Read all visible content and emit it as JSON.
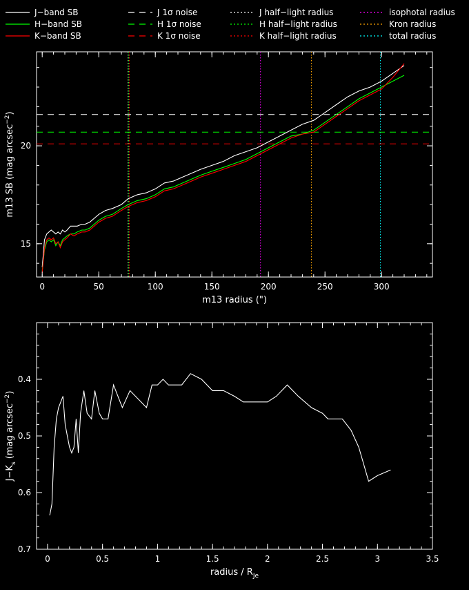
{
  "legend": {
    "items": [
      {
        "label": "J−band SB",
        "color": "#ffffff",
        "style": "solid"
      },
      {
        "label": "H−band SB",
        "color": "#00ff00",
        "style": "solid"
      },
      {
        "label": "K−band SB",
        "color": "#ff0000",
        "style": "solid"
      },
      {
        "label": "J 1σ noise",
        "color": "#ffffff",
        "style": "dashed"
      },
      {
        "label": "H 1σ noise",
        "color": "#00ff00",
        "style": "dashed"
      },
      {
        "label": "K 1σ noise",
        "color": "#ff0000",
        "style": "dashed"
      },
      {
        "label": "J half−light radius",
        "color": "#ffffff",
        "style": "dotted"
      },
      {
        "label": "H half−light radius",
        "color": "#00ff00",
        "style": "dotted"
      },
      {
        "label": "K half−light radius",
        "color": "#ff0000",
        "style": "dotted"
      },
      {
        "label": "isophotal radius",
        "color": "#ff00ff",
        "style": "dotted"
      },
      {
        "label": "Kron radius",
        "color": "#ffa500",
        "style": "dotted"
      },
      {
        "label": "total radius",
        "color": "#00ffff",
        "style": "dotted"
      }
    ]
  },
  "chart_data": [
    {
      "type": "line",
      "xlabel": "m13 radius (\")",
      "ylabel": "m13 SB (mag arcsec",
      "ylabel_sup": "−2",
      "ylabel_close": ")",
      "xlim": [
        -5,
        345
      ],
      "ylim": [
        24.8,
        13.3
      ],
      "x_ticks": [
        0,
        50,
        100,
        150,
        200,
        250,
        300
      ],
      "y_ticks": [
        15,
        20
      ],
      "series": [
        {
          "name": "J−band SB",
          "color": "#ffffff",
          "x": [
            0,
            2,
            4,
            6,
            8,
            10,
            12,
            14,
            16,
            18,
            20,
            22,
            25,
            28,
            31,
            35,
            38,
            42,
            46,
            50,
            56,
            62,
            70,
            76,
            84,
            92,
            100,
            108,
            116,
            124,
            132,
            140,
            150,
            160,
            170,
            180,
            190,
            200,
            210,
            220,
            230,
            240,
            250,
            260,
            270,
            280,
            290,
            300,
            310,
            320
          ],
          "y": [
            13.8,
            15.2,
            15.5,
            15.6,
            15.7,
            15.6,
            15.5,
            15.6,
            15.5,
            15.7,
            15.6,
            15.7,
            15.9,
            15.9,
            15.9,
            16.0,
            16.0,
            16.1,
            16.3,
            16.5,
            16.7,
            16.8,
            17.0,
            17.3,
            17.5,
            17.6,
            17.8,
            18.1,
            18.2,
            18.4,
            18.6,
            18.8,
            19.0,
            19.2,
            19.5,
            19.7,
            19.9,
            20.2,
            20.5,
            20.8,
            21.1,
            21.3,
            21.7,
            22.1,
            22.5,
            22.8,
            23.0,
            23.3,
            23.7,
            24.1
          ]
        },
        {
          "name": "H−band SB",
          "color": "#00ff00",
          "x": [
            0,
            2,
            4,
            6,
            8,
            10,
            12,
            14,
            16,
            18,
            20,
            22,
            25,
            28,
            31,
            35,
            38,
            42,
            46,
            50,
            56,
            62,
            70,
            76,
            84,
            92,
            100,
            108,
            116,
            124,
            132,
            140,
            150,
            160,
            170,
            180,
            190,
            200,
            210,
            220,
            230,
            240,
            250,
            260,
            270,
            280,
            290,
            300,
            310,
            320
          ],
          "y": [
            13.6,
            14.7,
            15.1,
            15.2,
            15.1,
            15.2,
            14.9,
            15.1,
            14.9,
            15.2,
            15.3,
            15.4,
            15.5,
            15.5,
            15.6,
            15.7,
            15.7,
            15.8,
            16.0,
            16.2,
            16.4,
            16.5,
            16.8,
            17.0,
            17.2,
            17.3,
            17.5,
            17.8,
            17.9,
            18.1,
            18.3,
            18.5,
            18.7,
            18.9,
            19.1,
            19.3,
            19.6,
            19.9,
            20.2,
            20.5,
            20.6,
            20.8,
            21.2,
            21.6,
            22.0,
            22.4,
            22.7,
            23.0,
            23.3,
            23.6
          ]
        },
        {
          "name": "K−band SB",
          "color": "#ff0000",
          "x": [
            0,
            2,
            4,
            6,
            8,
            10,
            12,
            14,
            16,
            18,
            20,
            22,
            25,
            28,
            31,
            35,
            38,
            42,
            46,
            50,
            56,
            62,
            70,
            76,
            84,
            92,
            100,
            108,
            116,
            124,
            132,
            140,
            150,
            160,
            170,
            180,
            190,
            200,
            210,
            220,
            230,
            240,
            250,
            260,
            270,
            280,
            290,
            300,
            310,
            320
          ],
          "y": [
            13.5,
            14.8,
            15.2,
            15.3,
            15.2,
            15.3,
            15.0,
            15.1,
            14.8,
            15.1,
            15.2,
            15.3,
            15.5,
            15.4,
            15.5,
            15.6,
            15.6,
            15.7,
            15.9,
            16.1,
            16.3,
            16.4,
            16.7,
            16.9,
            17.1,
            17.2,
            17.4,
            17.7,
            17.8,
            18.0,
            18.2,
            18.4,
            18.6,
            18.8,
            19.0,
            19.2,
            19.5,
            19.8,
            20.1,
            20.4,
            20.6,
            20.7,
            21.1,
            21.5,
            21.9,
            22.3,
            22.6,
            22.9,
            23.5,
            24.2
          ]
        }
      ],
      "hlines": [
        {
          "name": "J 1σ noise",
          "color": "#ffffff",
          "y": 21.6
        },
        {
          "name": "H 1σ noise",
          "color": "#00ff00",
          "y": 20.7
        },
        {
          "name": "K 1σ noise",
          "color": "#ff0000",
          "y": 20.1
        }
      ],
      "vlines": [
        {
          "name": "J half−light radius",
          "color": "#ffffff",
          "x": 76
        },
        {
          "name": "H half−light radius",
          "color": "#00ff00",
          "x": 76.5
        },
        {
          "name": "K half−light radius",
          "color": "#ff0000",
          "x": 77
        },
        {
          "name": "isophotal radius",
          "color": "#ff00ff",
          "x": 193
        },
        {
          "name": "Kron radius",
          "color": "#ffa500",
          "x": 238
        },
        {
          "name": "total radius",
          "color": "#00ffff",
          "x": 299
        }
      ]
    },
    {
      "type": "line",
      "xlabel": "radius / R",
      "xlabel_sub": "Je",
      "ylabel": "J−K",
      "ylabel_sub": "s",
      "ylabel_mid": " (mag arcsec",
      "ylabel_sup": "−2",
      "ylabel_close": ")",
      "xlim": [
        -0.1,
        3.5
      ],
      "ylim": [
        0.3,
        0.7
      ],
      "x_ticks": [
        0,
        0.5,
        1,
        1.5,
        2,
        2.5,
        3,
        3.5
      ],
      "x_tick_labels": [
        "0",
        "0.5",
        "1",
        "1.5",
        "2",
        "2.5",
        "3",
        "3.5"
      ],
      "y_ticks": [
        0.4,
        0.5,
        0.6,
        0.7
      ],
      "y_tick_labels": [
        "0.4",
        "0.5",
        "0.6",
        "0.7"
      ],
      "series": [
        {
          "name": "J−Ks",
          "color": "#ffffff",
          "x": [
            0.02,
            0.04,
            0.06,
            0.08,
            0.1,
            0.12,
            0.14,
            0.16,
            0.18,
            0.2,
            0.22,
            0.24,
            0.26,
            0.28,
            0.3,
            0.33,
            0.36,
            0.4,
            0.43,
            0.47,
            0.5,
            0.55,
            0.6,
            0.68,
            0.75,
            0.8,
            0.85,
            0.9,
            0.95,
            1.0,
            1.05,
            1.1,
            1.15,
            1.22,
            1.3,
            1.4,
            1.5,
            1.6,
            1.7,
            1.78,
            1.85,
            1.92,
            2.0,
            2.08,
            2.18,
            2.28,
            2.4,
            2.5,
            2.55,
            2.68,
            2.76,
            2.83,
            2.92,
            3.0,
            3.12
          ],
          "y": [
            0.64,
            0.62,
            0.52,
            0.47,
            0.45,
            0.44,
            0.43,
            0.48,
            0.5,
            0.52,
            0.53,
            0.52,
            0.47,
            0.53,
            0.46,
            0.42,
            0.46,
            0.47,
            0.42,
            0.46,
            0.47,
            0.47,
            0.41,
            0.45,
            0.42,
            0.43,
            0.44,
            0.45,
            0.41,
            0.41,
            0.4,
            0.41,
            0.41,
            0.41,
            0.39,
            0.4,
            0.42,
            0.42,
            0.43,
            0.44,
            0.44,
            0.44,
            0.44,
            0.43,
            0.41,
            0.43,
            0.45,
            0.46,
            0.47,
            0.47,
            0.49,
            0.52,
            0.58,
            0.57,
            0.56
          ]
        }
      ]
    }
  ]
}
